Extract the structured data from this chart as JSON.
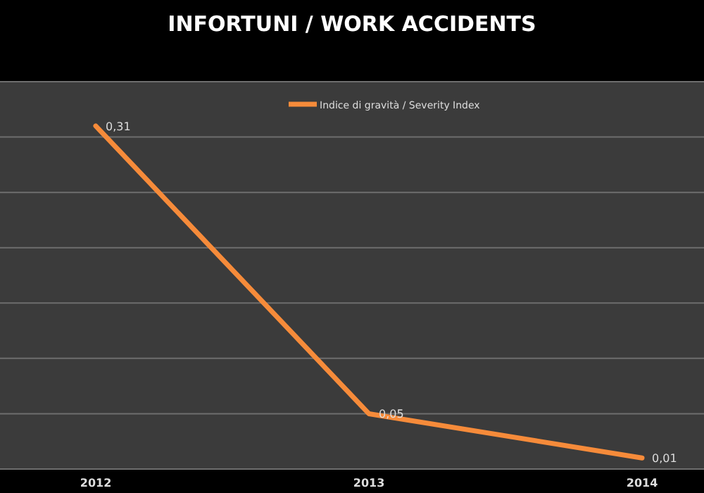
{
  "chart_data": {
    "type": "line",
    "title": "INFORTUNI / WORK ACCIDENTS",
    "categories": [
      "2012",
      "2013",
      "2014"
    ],
    "series": [
      {
        "name": "Indice di gravità / Severity Index",
        "color": "#f68b3a",
        "values": [
          0.31,
          0.05,
          0.01
        ],
        "value_labels": [
          "0,31",
          "0,05",
          "0,01"
        ]
      }
    ],
    "ylim": [
      0,
      0.35
    ],
    "yticks": [
      {
        "value": 0,
        "label": null
      },
      {
        "value": 0.05,
        "label": null
      },
      {
        "value": 0.1,
        "label": null
      },
      {
        "value": 0.15,
        "label": null
      },
      {
        "value": 0.2,
        "label": null
      },
      {
        "value": 0.25,
        "label": null
      },
      {
        "value": 0.3,
        "label": null
      },
      {
        "value": 0.35,
        "label": null
      }
    ],
    "tick_labels": "x",
    "grid": "y",
    "legend": "top",
    "marker": "none",
    "line_style": "solid"
  }
}
